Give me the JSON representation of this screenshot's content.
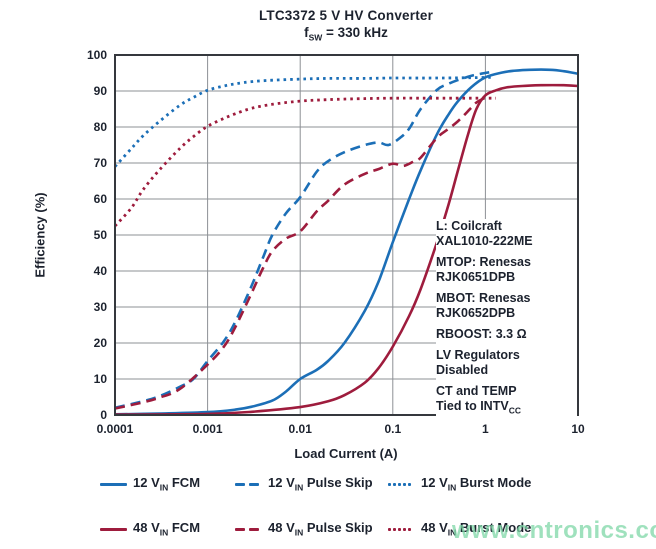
{
  "palette": {
    "blue": "#1c6fb7",
    "red": "#9e1c3d",
    "text": "#1c222e",
    "grid": "#8d9095",
    "border": "#35383d"
  },
  "watermark": {
    "text": "www.cntronics.com",
    "color": "#7fd8a8"
  },
  "chart_data": {
    "type": "line",
    "title": "LTC3372 5 V HV Converter",
    "subtitle_pre": "f",
    "subtitle_sub": "SW",
    "subtitle_post": " = 330 kHz",
    "xlabel": "Load Current (A)",
    "ylabel": "Efficiency (%)",
    "x_scale": "log",
    "xlim": [
      0.0001,
      10
    ],
    "ylim": [
      0,
      100
    ],
    "x_ticks": [
      "0.0001",
      "0.001",
      "0.01",
      "0.1",
      "1",
      "10"
    ],
    "y_ticks": [
      "0",
      "10",
      "20",
      "30",
      "40",
      "50",
      "60",
      "70",
      "80",
      "90",
      "100"
    ],
    "grid": true,
    "legend_position": "bottom",
    "series": [
      {
        "id": "12vin-fcm",
        "label_pre": "12 V",
        "label_sub": "IN",
        "label_post": " FCM",
        "color": "blue",
        "style": "solid",
        "points": [
          [
            0.0001,
            0.2
          ],
          [
            0.0003,
            0.4
          ],
          [
            0.001,
            0.8
          ],
          [
            0.002,
            1.5
          ],
          [
            0.003,
            2.3
          ],
          [
            0.005,
            4
          ],
          [
            0.007,
            6.5
          ],
          [
            0.01,
            10
          ],
          [
            0.015,
            12.5
          ],
          [
            0.02,
            15
          ],
          [
            0.03,
            20
          ],
          [
            0.05,
            29
          ],
          [
            0.07,
            37
          ],
          [
            0.1,
            48
          ],
          [
            0.15,
            60
          ],
          [
            0.2,
            68
          ],
          [
            0.3,
            78
          ],
          [
            0.4,
            83.5
          ],
          [
            0.5,
            87
          ],
          [
            0.7,
            91
          ],
          [
            1,
            93.8
          ],
          [
            1.5,
            95.1
          ],
          [
            2,
            95.6
          ],
          [
            3,
            95.9
          ],
          [
            5,
            95.9
          ],
          [
            7,
            95.5
          ],
          [
            10,
            94.8
          ]
        ]
      },
      {
        "id": "12vin-pulse-skip",
        "label_pre": "12 V",
        "label_sub": "IN",
        "label_post": " Pulse Skip",
        "color": "blue",
        "style": "dashed",
        "points": [
          [
            0.0001,
            2
          ],
          [
            0.0002,
            3.8
          ],
          [
            0.0003,
            5.2
          ],
          [
            0.0005,
            7.8
          ],
          [
            0.0007,
            10
          ],
          [
            0.001,
            15
          ],
          [
            0.0015,
            20.5
          ],
          [
            0.002,
            26
          ],
          [
            0.003,
            36
          ],
          [
            0.004,
            44
          ],
          [
            0.005,
            50
          ],
          [
            0.007,
            56
          ],
          [
            0.01,
            60.5
          ],
          [
            0.015,
            67.5
          ],
          [
            0.02,
            70.5
          ],
          [
            0.03,
            73
          ],
          [
            0.05,
            75
          ],
          [
            0.07,
            75.7
          ],
          [
            0.09,
            75
          ],
          [
            0.12,
            77
          ],
          [
            0.15,
            79.5
          ],
          [
            0.2,
            85
          ],
          [
            0.3,
            90.3
          ],
          [
            0.4,
            92
          ],
          [
            0.5,
            93
          ],
          [
            0.7,
            94.2
          ],
          [
            0.9,
            94.8
          ],
          [
            1.1,
            95.2
          ]
        ]
      },
      {
        "id": "12vin-burst-mode",
        "label_pre": "12 V",
        "label_sub": "IN",
        "label_post": " Burst Mode",
        "color": "blue",
        "style": "dotted",
        "points": [
          [
            0.0001,
            69
          ],
          [
            0.00015,
            74
          ],
          [
            0.0002,
            77.5
          ],
          [
            0.0003,
            81.5
          ],
          [
            0.0005,
            86
          ],
          [
            0.0007,
            88.2
          ],
          [
            0.001,
            90.2
          ],
          [
            0.0015,
            91.4
          ],
          [
            0.002,
            92
          ],
          [
            0.003,
            92.6
          ],
          [
            0.005,
            93
          ],
          [
            0.01,
            93.3
          ],
          [
            0.02,
            93.5
          ],
          [
            0.05,
            93.5
          ],
          [
            0.1,
            93.6
          ],
          [
            0.3,
            93.6
          ],
          [
            0.7,
            93.7
          ],
          [
            1.2,
            93.8
          ]
        ]
      },
      {
        "id": "48vin-fcm",
        "label_pre": "48 V",
        "label_sub": "IN",
        "label_post": " FCM",
        "color": "red",
        "style": "solid",
        "points": [
          [
            0.0001,
            0.1
          ],
          [
            0.001,
            0.3
          ],
          [
            0.003,
            0.9
          ],
          [
            0.01,
            2.2
          ],
          [
            0.02,
            3.8
          ],
          [
            0.03,
            5.5
          ],
          [
            0.05,
            9
          ],
          [
            0.07,
            13
          ],
          [
            0.1,
            19
          ],
          [
            0.15,
            27.5
          ],
          [
            0.2,
            35
          ],
          [
            0.3,
            48
          ],
          [
            0.4,
            58.5
          ],
          [
            0.5,
            67.5
          ],
          [
            0.65,
            78
          ],
          [
            0.8,
            85
          ],
          [
            1,
            88.8
          ],
          [
            1.3,
            90.2
          ],
          [
            1.7,
            91
          ],
          [
            2.5,
            91.4
          ],
          [
            4,
            91.6
          ],
          [
            7,
            91.6
          ],
          [
            10,
            91.4
          ]
        ]
      },
      {
        "id": "48vin-pulse-skip",
        "label_pre": "48 V",
        "label_sub": "IN",
        "label_post": " Pulse Skip",
        "color": "red",
        "style": "dashed",
        "points": [
          [
            0.0001,
            1.8
          ],
          [
            0.0002,
            3.5
          ],
          [
            0.0003,
            4.8
          ],
          [
            0.0005,
            7.2
          ],
          [
            0.001,
            14
          ],
          [
            0.0015,
            19
          ],
          [
            0.002,
            24.5
          ],
          [
            0.003,
            34
          ],
          [
            0.004,
            41
          ],
          [
            0.005,
            45.5
          ],
          [
            0.007,
            49
          ],
          [
            0.01,
            51
          ],
          [
            0.015,
            56.5
          ],
          [
            0.02,
            59.5
          ],
          [
            0.03,
            64
          ],
          [
            0.05,
            67
          ],
          [
            0.07,
            68.3
          ],
          [
            0.1,
            69.8
          ],
          [
            0.13,
            69.2
          ],
          [
            0.17,
            70.5
          ],
          [
            0.2,
            71.5
          ],
          [
            0.3,
            77
          ],
          [
            0.4,
            79.5
          ],
          [
            0.5,
            81.5
          ],
          [
            0.6,
            83.5
          ],
          [
            0.7,
            85.3
          ],
          [
            0.8,
            86.8
          ],
          [
            1,
            88.2
          ]
        ]
      },
      {
        "id": "48vin-burst-mode",
        "label_pre": "48 V",
        "label_sub": "IN",
        "label_post": " Burst Mode",
        "color": "red",
        "style": "dotted",
        "points": [
          [
            0.0001,
            52.5
          ],
          [
            0.00015,
            57.5
          ],
          [
            0.0002,
            62.5
          ],
          [
            0.0003,
            68
          ],
          [
            0.0005,
            74
          ],
          [
            0.0007,
            77.3
          ],
          [
            0.001,
            80.2
          ],
          [
            0.0015,
            82.4
          ],
          [
            0.002,
            83.7
          ],
          [
            0.003,
            85.2
          ],
          [
            0.005,
            86.3
          ],
          [
            0.01,
            87.2
          ],
          [
            0.02,
            87.6
          ],
          [
            0.05,
            87.9
          ],
          [
            0.1,
            88
          ],
          [
            0.3,
            88
          ],
          [
            0.7,
            88
          ],
          [
            1.3,
            88
          ]
        ]
      }
    ],
    "annotation": {
      "lines": [
        {
          "gap": false,
          "segments": [
            {
              "t": "L: Coilcraft"
            }
          ]
        },
        {
          "gap": false,
          "segments": [
            {
              "t": "XAL1010-222ME"
            }
          ]
        },
        {
          "gap": true,
          "segments": [
            {
              "t": "MTOP: Renesas"
            }
          ]
        },
        {
          "gap": false,
          "segments": [
            {
              "t": "RJK0651DPB"
            }
          ]
        },
        {
          "gap": true,
          "segments": [
            {
              "t": "MBOT: Renesas"
            }
          ]
        },
        {
          "gap": false,
          "segments": [
            {
              "t": "RJK0652DPB"
            }
          ]
        },
        {
          "gap": true,
          "segments": [
            {
              "t": "RBOOST: 3.3 Ω"
            }
          ]
        },
        {
          "gap": true,
          "segments": [
            {
              "t": "LV Regulators"
            }
          ]
        },
        {
          "gap": false,
          "segments": [
            {
              "t": "Disabled"
            }
          ]
        },
        {
          "gap": true,
          "segments": [
            {
              "t": "CT and TEMP"
            }
          ]
        },
        {
          "gap": false,
          "segments": [
            {
              "t": "Tied to INTV"
            },
            {
              "t": "CC",
              "sub": true
            }
          ]
        }
      ]
    }
  }
}
